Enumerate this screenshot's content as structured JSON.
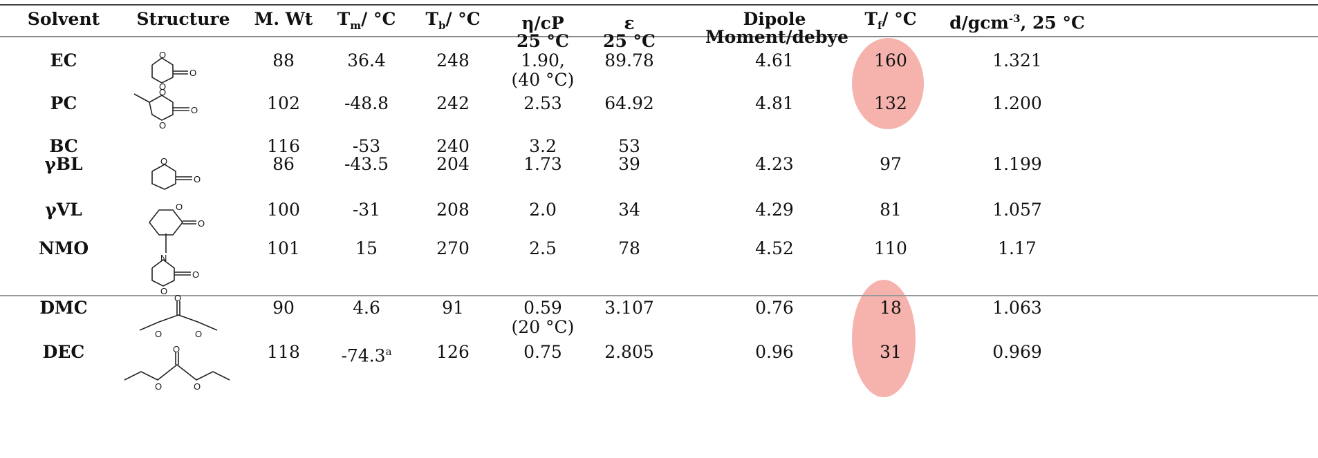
{
  "headers": {
    "solvent": "Solvent",
    "structure": "Structure",
    "mwt": "M. Wt",
    "tm": "Tm/ °C",
    "tb": "Tb/ °C",
    "eta_1": "η/cP",
    "eta_2": "25 °C",
    "eps_1": "ε",
    "eps_2": "25 °C",
    "dip_1": "Dipole",
    "dip_2": "Moment/debye",
    "tf": "Tf/ °C",
    "d": "d/gcm-3, 25 °C"
  },
  "rows": [
    {
      "solvent": "EC",
      "mwt": "88",
      "tm": "36.4",
      "tb": "248",
      "eta": "1.90,",
      "eta_note": "(40 °C)",
      "eps": "89.78",
      "dip": "4.61",
      "tf": "160",
      "d": "1.321"
    },
    {
      "solvent": "PC",
      "mwt": "102",
      "tm": "-48.8",
      "tb": "242",
      "eta": "2.53",
      "eta_note": "",
      "eps": "64.92",
      "dip": "4.81",
      "tf": "132",
      "d": "1.200"
    },
    {
      "solvent": "BC",
      "mwt": "116",
      "tm": "-53",
      "tb": "240",
      "eta": "3.2",
      "eta_note": "",
      "eps": "53",
      "dip": "",
      "tf": "",
      "d": ""
    },
    {
      "solvent": "γBL",
      "mwt": "86",
      "tm": "-43.5",
      "tb": "204",
      "eta": "1.73",
      "eta_note": "",
      "eps": "39",
      "dip": "4.23",
      "tf": "97",
      "d": "1.199"
    },
    {
      "solvent": "γVL",
      "mwt": "100",
      "tm": "-31",
      "tb": "208",
      "eta": "2.0",
      "eta_note": "",
      "eps": "34",
      "dip": "4.29",
      "tf": "81",
      "d": "1.057"
    },
    {
      "solvent": "NMO",
      "mwt": "101",
      "tm": "15",
      "tb": "270",
      "eta": "2.5",
      "eta_note": "",
      "eps": "78",
      "dip": "4.52",
      "tf": "110",
      "d": "1.17"
    },
    {
      "solvent": "DMC",
      "mwt": "90",
      "tm": "4.6",
      "tb": "91",
      "eta": "0.59",
      "eta_note": "(20 °C)",
      "eps": "3.107",
      "dip": "0.76",
      "tf": "18",
      "d": "1.063"
    },
    {
      "solvent": "DEC",
      "mwt": "118",
      "tm": "-74.3 a",
      "tb": "126",
      "eta": "0.75",
      "eta_note": "",
      "eps": "2.805",
      "dip": "0.96",
      "tf": "31",
      "d": "0.969"
    }
  ],
  "highlight_color": "#f4a6a0",
  "structure_atom_label": "O",
  "structure_n_label": "N"
}
